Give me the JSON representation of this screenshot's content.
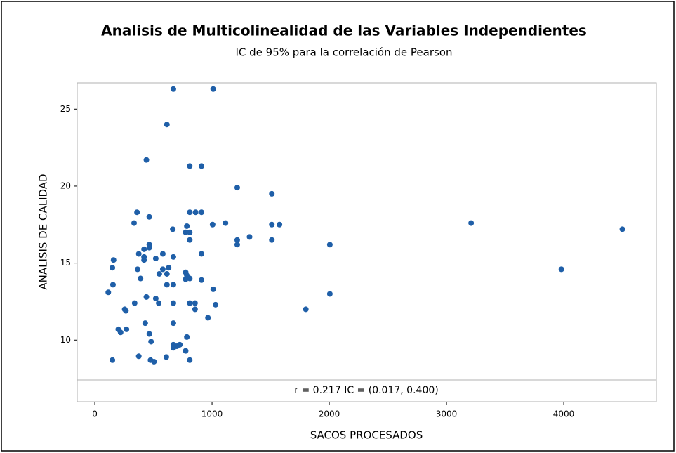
{
  "chart_data": {
    "type": "scatter",
    "title": "Analisis de Multicolinealidad de las Variables Independientes",
    "subtitle": "IC de 95% para la correlación de Pearson",
    "x_label": "SACOS PROCESADOS",
    "y_label": "ANALISIS DE CALIDAD",
    "annotation": "r = 0.217  IC = (0.017, 0.400)",
    "color": "#1f5fa8",
    "xlim": [
      -150,
      4790
    ],
    "ylim": [
      6,
      26.7
    ],
    "xticks": [
      0,
      1000,
      2000,
      3000,
      4000
    ],
    "yticks": [
      10,
      15,
      20,
      25
    ],
    "x": [
      670,
      1010,
      615,
      440,
      810,
      910,
      1215,
      1510,
      360,
      810,
      860,
      910,
      465,
      335,
      1115,
      3210,
      1005,
      1510,
      1575,
      785,
      665,
      4500,
      775,
      810,
      1320,
      810,
      1215,
      1215,
      1510,
      2005,
      465,
      465,
      420,
      375,
      580,
      910,
      420,
      670,
      520,
      420,
      160,
      150,
      630,
      365,
      580,
      3980,
      775,
      785,
      550,
      615,
      390,
      775,
      910,
      810,
      155,
      615,
      670,
      1010,
      115,
      2005,
      440,
      520,
      340,
      545,
      810,
      855,
      670,
      1030,
      855,
      255,
      265,
      1800,
      965,
      670,
      430,
      200,
      270,
      220,
      465,
      785,
      480,
      670,
      670,
      725,
      700,
      775,
      375,
      610,
      150,
      475,
      505,
      810
    ],
    "y": [
      26.3,
      26.3,
      24.0,
      21.7,
      21.3,
      21.3,
      19.9,
      19.5,
      18.3,
      18.3,
      18.3,
      18.3,
      18.0,
      17.6,
      17.6,
      17.6,
      17.5,
      17.5,
      17.5,
      17.4,
      17.2,
      17.2,
      17.0,
      17.0,
      16.7,
      16.5,
      16.5,
      16.2,
      16.5,
      16.2,
      16.2,
      16.0,
      15.9,
      15.6,
      15.6,
      15.6,
      15.4,
      15.4,
      15.3,
      15.2,
      15.2,
      14.7,
      14.7,
      14.6,
      14.6,
      14.6,
      14.4,
      14.2,
      14.3,
      14.3,
      14.0,
      13.95,
      13.9,
      14.0,
      13.6,
      13.6,
      13.6,
      13.3,
      13.1,
      13.0,
      12.8,
      12.7,
      12.4,
      12.4,
      12.4,
      12.4,
      12.4,
      12.3,
      12.0,
      12.0,
      11.9,
      12.0,
      11.45,
      11.1,
      11.1,
      10.7,
      10.7,
      10.5,
      10.4,
      10.2,
      9.9,
      9.7,
      9.5,
      9.7,
      9.6,
      9.3,
      8.95,
      8.9,
      8.7,
      8.7,
      8.6,
      8.7
    ]
  }
}
